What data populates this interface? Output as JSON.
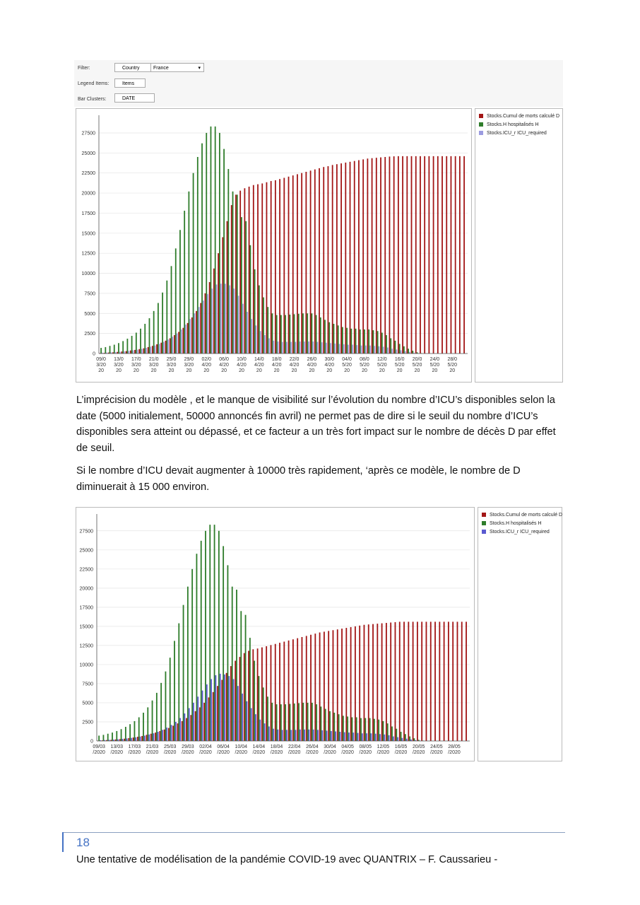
{
  "filter_panel": {
    "filter_label": "Filter:",
    "filter_field": "Country",
    "filter_value": "France",
    "legend_label": "Legend Items:",
    "legend_field": "Items",
    "cluster_label": "Bar Clusters:",
    "cluster_field": "DATE"
  },
  "paragraphs": [
    "L’imprécision du modèle , et le manque de visibilité sur l’évolution du nombre d’ICU’s disponibles selon la date (5000 initialement, 50000 annoncés fin avril) ne permet pas de dire si le seuil du nombre d’ICU’s disponibles sera atteint ou dépassé, et ce facteur a un très fort impact sur le nombre de décès D par effet de seuil.",
    "Si le nombre d’ICU devait augmenter à 10000 très rapidement, ‘après ce modèle, le nombre de D diminuerait à 15 000 environ."
  ],
  "footer": {
    "page_number": "18",
    "text": "Une tentative de modélisation de la pandémie COVID-19 avec QUANTRIX – F. Caussarieu -"
  },
  "chart_data": [
    {
      "type": "bar",
      "grid": true,
      "categories": [
        "09/03/2020",
        null,
        null,
        null,
        "13/03/2020",
        null,
        null,
        null,
        "17/03/2020",
        null,
        null,
        null,
        "21/03/2020",
        null,
        null,
        null,
        "25/03/2020",
        null,
        null,
        null,
        "29/03/2020",
        null,
        null,
        null,
        "02/04/2020",
        null,
        null,
        null,
        "06/04/2020",
        null,
        null,
        null,
        "10/04/2020",
        null,
        null,
        null,
        "14/04/2020",
        null,
        null,
        null,
        "18/04/2020",
        null,
        null,
        null,
        "22/04/2020",
        null,
        null,
        null,
        "26/04/2020",
        null,
        null,
        null,
        "30/04/2020",
        null,
        null,
        null,
        "04/05/2020",
        null,
        null,
        null,
        "08/05/2020",
        null,
        null,
        null,
        "12/05/2020",
        null,
        null,
        null,
        "16/05/2020",
        null,
        null,
        null,
        "20/05/2020",
        null,
        null,
        null,
        "24/05/2020",
        null,
        null,
        null,
        "28/05/2020",
        null,
        null,
        null
      ],
      "ylim": [
        0,
        29700
      ],
      "yticks": [
        0,
        2500,
        5000,
        7500,
        10000,
        12500,
        15000,
        17500,
        20000,
        22500,
        25000,
        27500
      ],
      "series": [
        {
          "name": "Stocks.Cumul de morts calculé D",
          "color": "#a31616",
          "values": [
            50,
            80,
            120,
            150,
            200,
            250,
            300,
            380,
            450,
            550,
            650,
            800,
            950,
            1150,
            1350,
            1600,
            1900,
            2300,
            2700,
            3200,
            3800,
            4500,
            5300,
            6300,
            7500,
            8900,
            10600,
            12500,
            14500,
            16500,
            18500,
            19800,
            20300,
            20600,
            20800,
            21000,
            21100,
            21200,
            21350,
            21500,
            21600,
            21750,
            21900,
            22050,
            22200,
            22350,
            22500,
            22650,
            22800,
            22950,
            23100,
            23250,
            23350,
            23500,
            23600,
            23700,
            23800,
            23900,
            24000,
            24100,
            24200,
            24300,
            24350,
            24400,
            24450,
            24500,
            24550,
            24580,
            24600,
            24600,
            24600,
            24600,
            24600,
            24600,
            24600,
            24600,
            24600,
            24600,
            24600,
            24600,
            24600,
            24600,
            24600,
            24600
          ]
        },
        {
          "name": "Stocks.H hospitalisés H",
          "color": "#2f7d2b",
          "values": [
            700,
            800,
            950,
            1100,
            1300,
            1550,
            1850,
            2200,
            2600,
            3100,
            3700,
            4400,
            5300,
            6300,
            7600,
            9100,
            10900,
            13100,
            15400,
            17800,
            20200,
            22500,
            24500,
            26200,
            27500,
            28300,
            28300,
            27500,
            25500,
            23000,
            20200,
            19800,
            17000,
            16500,
            13500,
            10500,
            8500,
            7000,
            5800,
            5000,
            4800,
            4800,
            4800,
            4850,
            4900,
            4950,
            5000,
            5000,
            5000,
            4800,
            4500,
            4200,
            3900,
            3700,
            3500,
            3300,
            3200,
            3100,
            3100,
            3000,
            3000,
            3000,
            2900,
            2800,
            2600,
            2300,
            1900,
            1600,
            1200,
            900,
            600,
            350,
            150,
            50,
            0,
            0,
            0,
            0,
            0,
            0,
            0,
            0,
            0,
            0
          ]
        },
        {
          "name": "Stocks.ICU_r ICU_required",
          "color": "#9b9be0",
          "values": [
            100,
            120,
            150,
            180,
            220,
            270,
            330,
            400,
            480,
            580,
            700,
            850,
            1000,
            1200,
            1450,
            1750,
            2100,
            2500,
            3000,
            3600,
            4300,
            5000,
            5800,
            6600,
            7400,
            8100,
            8600,
            8700,
            8700,
            8500,
            8100,
            7200,
            6200,
            5200,
            4300,
            3500,
            2800,
            2300,
            1900,
            1600,
            1500,
            1450,
            1450,
            1450,
            1450,
            1500,
            1500,
            1500,
            1500,
            1450,
            1400,
            1350,
            1300,
            1250,
            1200,
            1150,
            1100,
            1100,
            1050,
            1000,
            1000,
            1000,
            950,
            900,
            850,
            750,
            600,
            500,
            400,
            300,
            200,
            100,
            50,
            0,
            0,
            0,
            0,
            0,
            0,
            0,
            0,
            0,
            0,
            0
          ]
        }
      ]
    },
    {
      "type": "bar",
      "grid": true,
      "categories": [
        "09/03/2020",
        null,
        null,
        null,
        "13/03/2020",
        null,
        null,
        null,
        "17/03/2020",
        null,
        null,
        null,
        "21/03/2020",
        null,
        null,
        null,
        "25/03/2020",
        null,
        null,
        null,
        "29/03/2020",
        null,
        null,
        null,
        "02/04/2020",
        null,
        null,
        null,
        "06/04/2020",
        null,
        null,
        null,
        "10/04/2020",
        null,
        null,
        null,
        "14/04/2020",
        null,
        null,
        null,
        "18/04/2020",
        null,
        null,
        null,
        "22/04/2020",
        null,
        null,
        null,
        "26/04/2020",
        null,
        null,
        null,
        "30/04/2020",
        null,
        null,
        null,
        "04/05/2020",
        null,
        null,
        null,
        "08/05/2020",
        null,
        null,
        null,
        "12/05/2020",
        null,
        null,
        null,
        "16/05/2020",
        null,
        null,
        null,
        "20/05/2020",
        null,
        null,
        null,
        "24/05/2020",
        null,
        null,
        null,
        "28/05/2020",
        null,
        null,
        null
      ],
      "ylim": [
        0,
        29700
      ],
      "yticks": [
        0,
        2500,
        5000,
        7500,
        10000,
        12500,
        15000,
        17500,
        20000,
        22500,
        25000,
        27500
      ],
      "series": [
        {
          "name": "Stocks.Cumul de morts calculé D",
          "color": "#a31616",
          "values": [
            50,
            80,
            120,
            150,
            200,
            250,
            300,
            380,
            450,
            550,
            650,
            800,
            950,
            1100,
            1300,
            1500,
            1700,
            2000,
            2300,
            2600,
            3000,
            3400,
            3900,
            4400,
            5000,
            5700,
            6400,
            7200,
            8000,
            8900,
            9800,
            10500,
            11000,
            11500,
            11800,
            12000,
            12100,
            12250,
            12400,
            12550,
            12700,
            12850,
            13000,
            13150,
            13300,
            13450,
            13600,
            13750,
            13900,
            14050,
            14200,
            14300,
            14400,
            14500,
            14600,
            14700,
            14800,
            14900,
            15000,
            15100,
            15200,
            15250,
            15300,
            15350,
            15400,
            15450,
            15500,
            15550,
            15600,
            15600,
            15600,
            15600,
            15600,
            15600,
            15600,
            15600,
            15600,
            15600,
            15600,
            15600,
            15600,
            15600,
            15600,
            15600
          ]
        },
        {
          "name": "Stocks.H hospitalisés H",
          "color": "#2f7d2b",
          "values": [
            700,
            800,
            950,
            1100,
            1300,
            1550,
            1850,
            2200,
            2600,
            3100,
            3700,
            4400,
            5300,
            6300,
            7600,
            9100,
            10900,
            13100,
            15400,
            17800,
            20200,
            22500,
            24500,
            26200,
            27500,
            28300,
            28300,
            27500,
            25500,
            23000,
            20200,
            19800,
            17000,
            16500,
            13500,
            10500,
            8500,
            7000,
            5800,
            5000,
            4800,
            4800,
            4800,
            4850,
            4900,
            4950,
            5000,
            5000,
            5000,
            4800,
            4500,
            4200,
            3900,
            3700,
            3500,
            3300,
            3200,
            3100,
            3100,
            3000,
            3000,
            3000,
            2900,
            2800,
            2600,
            2300,
            1900,
            1600,
            1200,
            900,
            600,
            350,
            150,
            50,
            0,
            0,
            0,
            0,
            0,
            0,
            0,
            0,
            0,
            0
          ]
        },
        {
          "name": "Stocks.ICU_r ICU_required",
          "color": "#5a5ad0",
          "values": [
            100,
            120,
            150,
            180,
            220,
            270,
            330,
            400,
            480,
            580,
            700,
            850,
            1000,
            1200,
            1450,
            1750,
            2100,
            2500,
            3000,
            3600,
            4300,
            5000,
            5800,
            6600,
            7400,
            8100,
            8600,
            8800,
            8700,
            8500,
            8100,
            7200,
            6200,
            5200,
            4300,
            3500,
            2800,
            2300,
            1900,
            1600,
            1500,
            1450,
            1450,
            1450,
            1450,
            1500,
            1500,
            1500,
            1500,
            1450,
            1400,
            1350,
            1300,
            1250,
            1200,
            1150,
            1100,
            1100,
            1050,
            1000,
            1000,
            1000,
            950,
            900,
            850,
            750,
            600,
            500,
            400,
            300,
            200,
            100,
            50,
            0,
            0,
            0,
            0,
            0,
            0,
            0,
            0,
            0,
            0,
            0
          ]
        }
      ]
    }
  ]
}
